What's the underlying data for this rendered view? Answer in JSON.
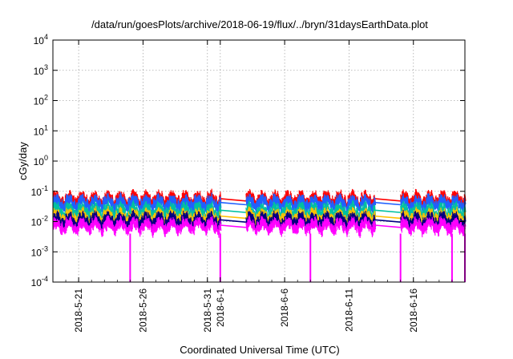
{
  "chart_data": {
    "type": "line",
    "title": "/data/run/goesPlots/archive/2018-06-19/flux/../bryn/31daysEarthData.plot",
    "xlabel": "Coordinated Universal Time (UTC)",
    "ylabel": "cGy/day",
    "y_scale": "log",
    "ylim": [
      0.0001,
      10000
    ],
    "xlim": [
      "2018-05-19",
      "2018-06-20"
    ],
    "x_ticks": [
      "2018-5-21",
      "2018-5-26",
      "2018-5-31",
      "2018-6-1",
      "2018-6-6",
      "2018-6-11",
      "2018-6-16"
    ],
    "x_tick_dates": [
      "2018-05-21",
      "2018-05-26",
      "2018-05-31",
      "2018-06-01",
      "2018-06-06",
      "2018-06-11",
      "2018-06-16"
    ],
    "y_ticks": [
      {
        "value": 0.0001,
        "base": "10",
        "exp": "-4"
      },
      {
        "value": 0.001,
        "base": "10",
        "exp": "-3"
      },
      {
        "value": 0.01,
        "base": "10",
        "exp": "-2"
      },
      {
        "value": 0.1,
        "base": "10",
        "exp": "-1"
      },
      {
        "value": 1,
        "base": "10",
        "exp": "0"
      },
      {
        "value": 10,
        "base": "10",
        "exp": "1"
      },
      {
        "value": 100,
        "base": "10",
        "exp": "2"
      },
      {
        "value": 1000,
        "base": "10",
        "exp": "3"
      },
      {
        "value": 10000,
        "base": "10",
        "exp": "4"
      }
    ],
    "grid": true,
    "data_segments": [
      {
        "start": "2018-05-19",
        "end": "2018-06-01"
      },
      {
        "start": "2018-06-03",
        "end": "2018-06-13"
      },
      {
        "start": "2018-06-15",
        "end": "2018-06-20"
      }
    ],
    "series": [
      {
        "color": "#ff0000",
        "typical": 0.06,
        "amplitude": 0.015
      },
      {
        "color": "#2060ff",
        "typical": 0.045,
        "amplitude": 0.012
      },
      {
        "color": "#00c0a0",
        "typical": 0.025,
        "amplitude": 0.006
      },
      {
        "color": "#ffc000",
        "typical": 0.016,
        "amplitude": 0.004
      },
      {
        "color": "#000080",
        "typical": 0.012,
        "amplitude": 0.003
      },
      {
        "color": "#ff00ff",
        "typical": 0.008,
        "amplitude": 0.003
      }
    ],
    "drop_dates": [
      "2018-05-25",
      "2018-06-01",
      "2018-06-08",
      "2018-06-15",
      "2018-06-19",
      "2018-06-20"
    ]
  }
}
